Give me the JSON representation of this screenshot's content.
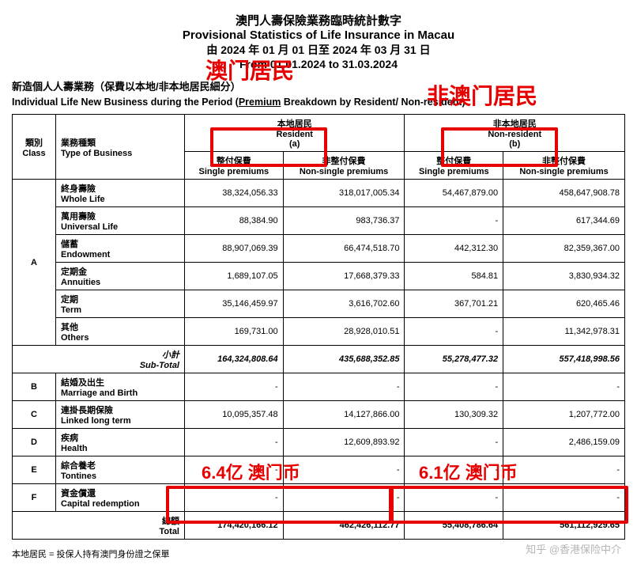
{
  "header": {
    "l1": "澳門人壽保險業務臨時統計數字",
    "l2": "Provisional Statistics of Life Insurance in Macau",
    "l3": "由 2024 年 01 月 01 日至 2024 年 03 月 31 日",
    "l4": "From 01.01.2024 to 31.03.2024"
  },
  "subtitle_zh": "新造個人人壽業務（保費以本地/非本地居民細分）",
  "subtitle_en_a": "Individual Life New Business during the Period (",
  "subtitle_en_u": "Premium",
  "subtitle_en_b": " Breakdown by Resident/ Non-resident)",
  "cols": {
    "class_zh": "類別",
    "class_en": "Class",
    "type_zh": "業務種類",
    "type_en": "Type of Business",
    "res_zh": "本地居民",
    "res_en": "Resident",
    "res_tag": "(a)",
    "nres_zh": "非本地居民",
    "nres_en": "Non-resident",
    "nres_tag": "(b)",
    "sp_zh": "整付保費",
    "sp_en": "Single premiums",
    "nsp_zh": "非整付保費",
    "nsp_en": "Non-single premiums"
  },
  "rows": [
    {
      "c": "",
      "t1": "終身壽險",
      "t2": "Whole Life",
      "a": "38,324,056.33",
      "b": "318,017,005.34",
      "d": "54,467,879.00",
      "e": "458,647,908.78"
    },
    {
      "c": "",
      "t1": "萬用壽險",
      "t2": "Universal Life",
      "a": "88,384.90",
      "b": "983,736.37",
      "d": "-",
      "e": "617,344.69"
    },
    {
      "c": "",
      "t1": "儲蓄",
      "t2": "Endowment",
      "a": "88,907,069.39",
      "b": "66,474,518.70",
      "d": "442,312.30",
      "e": "82,359,367.00"
    },
    {
      "c": "A",
      "t1": "定期金",
      "t2": "Annuities",
      "a": "1,689,107.05",
      "b": "17,668,379.33",
      "d": "584.81",
      "e": "3,830,934.32"
    },
    {
      "c": "",
      "t1": "定期",
      "t2": "Term",
      "a": "35,146,459.97",
      "b": "3,616,702.60",
      "d": "367,701.21",
      "e": "620,465.46"
    },
    {
      "c": "",
      "t1": "其他",
      "t2": "Others",
      "a": "169,731.00",
      "b": "28,928,010.51",
      "d": "-",
      "e": "11,342,978.31"
    }
  ],
  "subtotal": {
    "lbl1": "小計",
    "lbl2": "Sub-Total",
    "a": "164,324,808.64",
    "b": "435,688,352.85",
    "d": "55,278,477.32",
    "e": "557,418,998.56"
  },
  "rows2": [
    {
      "c": "B",
      "t1": "結婚及出生",
      "t2": "Marriage and Birth",
      "a": "-",
      "b": "-",
      "d": "-",
      "e": "-"
    },
    {
      "c": "C",
      "t1": "連掛長期保險",
      "t2": "Linked long term",
      "a": "10,095,357.48",
      "b": "14,127,866.00",
      "d": "130,309.32",
      "e": "1,207,772.00"
    },
    {
      "c": "D",
      "t1": "疾病",
      "t2": "Health",
      "a": "-",
      "b": "12,609,893.92",
      "d": "-",
      "e": "2,486,159.09"
    },
    {
      "c": "E",
      "t1": "綜合養老",
      "t2": "Tontines",
      "a": "-",
      "b": "-",
      "d": "-",
      "e": "-"
    },
    {
      "c": "F",
      "t1": "資金償還",
      "t2": "Capital redemption",
      "a": "-",
      "b": "-",
      "d": "-",
      "e": "-"
    }
  ],
  "total": {
    "lbl1": "總額",
    "lbl2": "Total",
    "a": "174,420,166.12",
    "b": "462,426,112.77",
    "d": "55,408,786.64",
    "e": "561,112,929.65"
  },
  "footnote": "本地居民 = 投保人持有澳門身份證之保單",
  "annot": {
    "aom": "澳门居民",
    "faom": "非澳门居民",
    "m1": "6.4亿 澳门币",
    "m2": "6.1亿 澳门币"
  },
  "watermark": "知乎 @香港保险中介",
  "style": {
    "red": "#e60000",
    "anno_fontsize_big": "28px",
    "anno_fontsize_mid": "22px"
  }
}
